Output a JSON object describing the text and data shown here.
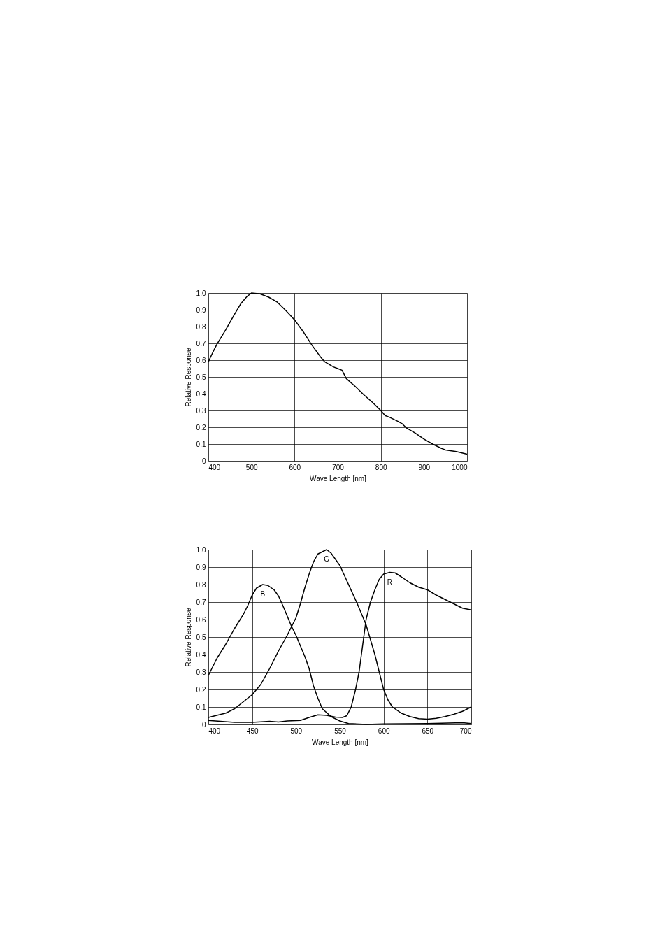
{
  "chart_data": [
    {
      "type": "line",
      "xlabel": "Wave Length [nm]",
      "ylabel": "Relative Response",
      "xlim": [
        400,
        1000
      ],
      "ylim": [
        0,
        1.0
      ],
      "xticks": [
        400,
        500,
        600,
        700,
        800,
        900,
        1000
      ],
      "yticks": [
        0,
        {
          "value": 0.1,
          "label": "0.1"
        },
        {
          "value": 0.2,
          "label": "0.2"
        },
        {
          "value": 0.3,
          "label": "0.3"
        },
        {
          "value": 0.4,
          "label": "0.4"
        },
        {
          "value": 0.5,
          "label": "0.5"
        },
        {
          "value": 0.6,
          "label": "0.6"
        },
        {
          "value": 0.7,
          "label": "0.7"
        },
        {
          "value": 0.8,
          "label": "0.8"
        },
        {
          "value": 0.9,
          "label": "0.9"
        },
        {
          "value": 1.0,
          "label": "1.0"
        }
      ],
      "grid": true,
      "legend": false,
      "line_style": "solid",
      "marker": "none",
      "x": [
        400,
        410,
        420,
        440,
        460,
        475,
        490,
        500,
        520,
        540,
        560,
        580,
        600,
        620,
        640,
        660,
        670,
        690,
        700,
        710,
        720,
        740,
        760,
        780,
        800,
        810,
        820,
        840,
        850,
        860,
        880,
        900,
        920,
        940,
        950,
        975,
        1000
      ],
      "series": [
        {
          "color": "#000000",
          "values": [
            0.59,
            0.645,
            0.695,
            0.78,
            0.87,
            0.935,
            0.98,
            1.0,
            0.995,
            0.975,
            0.945,
            0.895,
            0.84,
            0.77,
            0.69,
            0.62,
            0.59,
            0.56,
            0.55,
            0.54,
            0.49,
            0.445,
            0.395,
            0.35,
            0.3,
            0.27,
            0.26,
            0.235,
            0.22,
            0.195,
            0.165,
            0.13,
            0.1,
            0.075,
            0.065,
            0.055,
            0.04
          ]
        }
      ]
    },
    {
      "type": "line",
      "xlabel": "Wave Length [nm]",
      "ylabel": "Relative Response",
      "xlim": [
        400,
        700
      ],
      "ylim": [
        0,
        1.0
      ],
      "xticks": [
        400,
        450,
        500,
        550,
        600,
        650,
        700
      ],
      "yticks": [
        0,
        {
          "value": 0.1,
          "label": "0.1"
        },
        {
          "value": 0.2,
          "label": "0.2"
        },
        {
          "value": 0.3,
          "label": "0.3"
        },
        {
          "value": 0.4,
          "label": "0.4"
        },
        {
          "value": 0.5,
          "label": "0.5"
        },
        {
          "value": 0.6,
          "label": "0.6"
        },
        {
          "value": 0.7,
          "label": "0.7"
        },
        {
          "value": 0.8,
          "label": "0.8"
        },
        {
          "value": 0.9,
          "label": "0.9"
        },
        {
          "value": 1.0,
          "label": "1.0"
        }
      ],
      "grid": true,
      "legend": false,
      "line_style": "solid",
      "marker": "none",
      "series": [
        {
          "name": "B",
          "color": "#000000",
          "x": [
            400,
            410,
            420,
            430,
            440,
            445,
            450,
            455,
            462,
            468,
            475,
            480,
            485,
            490,
            495,
            500,
            505,
            510,
            515,
            520,
            525,
            530,
            540,
            550,
            560,
            580,
            600,
            650,
            690,
            700
          ],
          "values": [
            0.28,
            0.38,
            0.46,
            0.55,
            0.63,
            0.68,
            0.74,
            0.78,
            0.8,
            0.795,
            0.77,
            0.735,
            0.68,
            0.62,
            0.56,
            0.51,
            0.45,
            0.39,
            0.32,
            0.22,
            0.15,
            0.09,
            0.045,
            0.02,
            0.005,
            0.0,
            0.003,
            0.005,
            0.01,
            0.005
          ]
        },
        {
          "name": "G",
          "color": "#000000",
          "x": [
            400,
            420,
            430,
            440,
            450,
            460,
            470,
            480,
            490,
            500,
            505,
            510,
            515,
            520,
            525,
            535,
            540,
            550,
            560,
            570,
            580,
            590,
            595,
            600,
            605,
            610,
            620,
            630,
            640,
            650,
            660,
            670,
            680,
            690,
            700
          ],
          "values": [
            0.04,
            0.065,
            0.09,
            0.13,
            0.17,
            0.23,
            0.32,
            0.42,
            0.51,
            0.61,
            0.69,
            0.78,
            0.86,
            0.93,
            0.975,
            1.0,
            0.98,
            0.91,
            0.8,
            0.69,
            0.57,
            0.4,
            0.3,
            0.2,
            0.14,
            0.1,
            0.065,
            0.045,
            0.033,
            0.03,
            0.035,
            0.045,
            0.058,
            0.075,
            0.1
          ]
        },
        {
          "name": "R",
          "color": "#000000",
          "x": [
            400,
            430,
            450,
            470,
            480,
            490,
            505,
            515,
            525,
            535,
            545,
            553,
            558,
            563,
            568,
            572,
            576,
            580,
            585,
            590,
            595,
            600,
            607,
            613,
            620,
            630,
            640,
            650,
            660,
            670,
            680,
            690,
            700
          ],
          "values": [
            0.023,
            0.012,
            0.012,
            0.018,
            0.014,
            0.02,
            0.023,
            0.04,
            0.055,
            0.052,
            0.042,
            0.04,
            0.05,
            0.1,
            0.2,
            0.3,
            0.45,
            0.6,
            0.7,
            0.77,
            0.83,
            0.86,
            0.87,
            0.867,
            0.845,
            0.81,
            0.785,
            0.77,
            0.74,
            0.715,
            0.69,
            0.665,
            0.655
          ]
        }
      ]
    }
  ]
}
